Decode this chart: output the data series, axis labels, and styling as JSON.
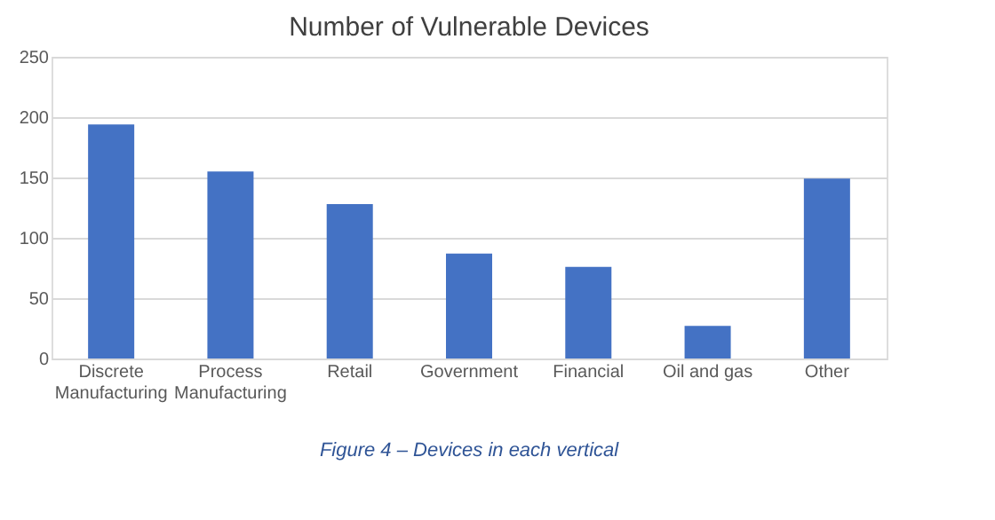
{
  "chart_data": {
    "type": "bar",
    "title": "Number of Vulnerable Devices",
    "categories": [
      "Discrete Manufacturing",
      "Process Manufacturing",
      "Retail",
      "Government",
      "Financial",
      "Oil and gas",
      "Other"
    ],
    "values": [
      194,
      155,
      128,
      87,
      76,
      27,
      149
    ],
    "color": "#4472c4",
    "ylim": [
      0,
      250
    ],
    "yticks": [
      0,
      50,
      100,
      150,
      200,
      250
    ],
    "grid": "y",
    "annotations": [
      "Figure 4 – Devices in each vertical"
    ]
  }
}
